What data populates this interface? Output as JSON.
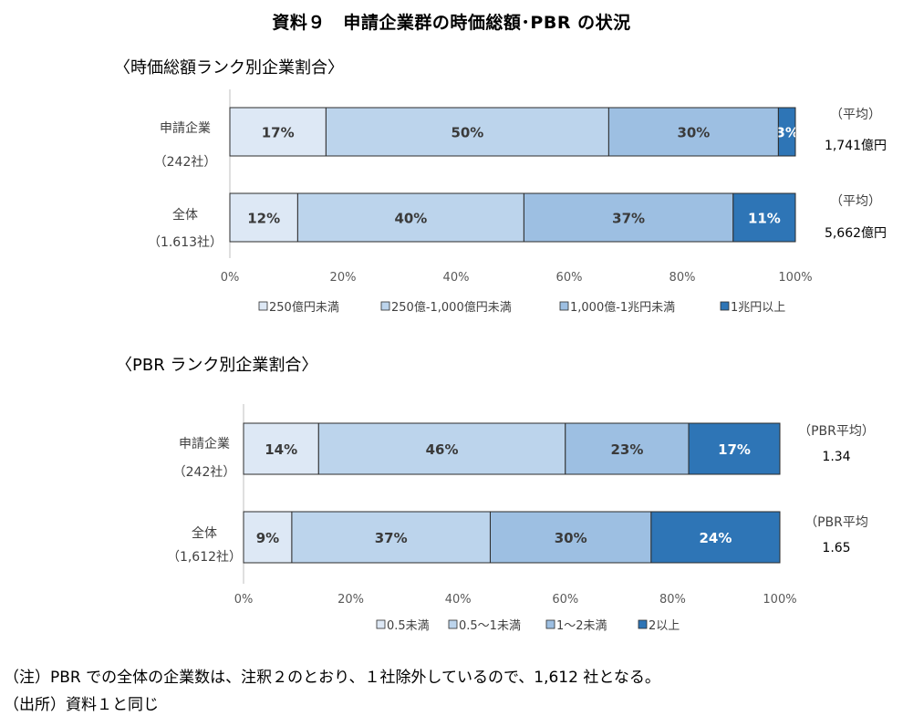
{
  "title": "資料９　申請企業群の時価総額･PBR の状況",
  "colors": {
    "c1": "#dde8f5",
    "c2": "#bcd4ec",
    "c3": "#9dbfe2",
    "c4": "#2e75b6",
    "border": "#2b2b2b",
    "axis": "#bfbfbf",
    "text": "#404040",
    "barText": "#3a3a3a"
  },
  "chart_data": [
    {
      "type": "bar",
      "orientation": "horizontal",
      "stacked": true,
      "title": "〈時価総額ランク別企業割合〉",
      "categories": [
        "申請企業",
        "全体"
      ],
      "category_counts": [
        "（242社）",
        "（1.613社）"
      ],
      "series": [
        {
          "name": "250億円未満",
          "values": [
            17,
            12
          ],
          "labels": [
            "17%",
            "12%"
          ]
        },
        {
          "name": "250億-1,000億円未満",
          "values": [
            50,
            40
          ],
          "labels": [
            "50%",
            "40%"
          ]
        },
        {
          "name": "1,000億-1兆円未満",
          "values": [
            30,
            37
          ],
          "labels": [
            "30%",
            "37%"
          ]
        },
        {
          "name": "1兆円以上",
          "values": [
            3,
            11
          ],
          "labels": [
            "3%",
            "11%"
          ]
        }
      ],
      "right_annotations": [
        {
          "label": "（平均）",
          "value": "1,741億円"
        },
        {
          "label": "（平均）",
          "value": "5,662億円"
        }
      ],
      "xlim": [
        0,
        100
      ],
      "xticks": [
        "0%",
        "20%",
        "40%",
        "60%",
        "80%",
        "100%"
      ],
      "legend_position": "bottom"
    },
    {
      "type": "bar",
      "orientation": "horizontal",
      "stacked": true,
      "title": "〈PBR ランク別企業割合〉",
      "categories": [
        "申請企業",
        "全体"
      ],
      "category_counts": [
        "（242社）",
        "（1,612社）"
      ],
      "series": [
        {
          "name": "0.5未満",
          "values": [
            14,
            9
          ],
          "labels": [
            "14%",
            "9%"
          ]
        },
        {
          "name": "0.5～1未満",
          "values": [
            46,
            37
          ],
          "labels": [
            "46%",
            "37%"
          ]
        },
        {
          "name": "1～2未満",
          "values": [
            23,
            30
          ],
          "labels": [
            "23%",
            "30%"
          ]
        },
        {
          "name": "2以上",
          "values": [
            17,
            24
          ],
          "labels": [
            "17%",
            "24%"
          ]
        }
      ],
      "right_annotations": [
        {
          "label": "（PBR平均）",
          "value": "1.34"
        },
        {
          "label": "（PBR平均",
          "value": "1.65"
        }
      ],
      "xlim": [
        0,
        100
      ],
      "xticks": [
        "0%",
        "20%",
        "40%",
        "60%",
        "80%",
        "100%"
      ],
      "legend_position": "bottom"
    }
  ],
  "notes": [
    "（注）PBR での全体の企業数は、注釈２のとおり、１社除外しているので、1,612 社となる。",
    "（出所）資料１と同じ"
  ]
}
